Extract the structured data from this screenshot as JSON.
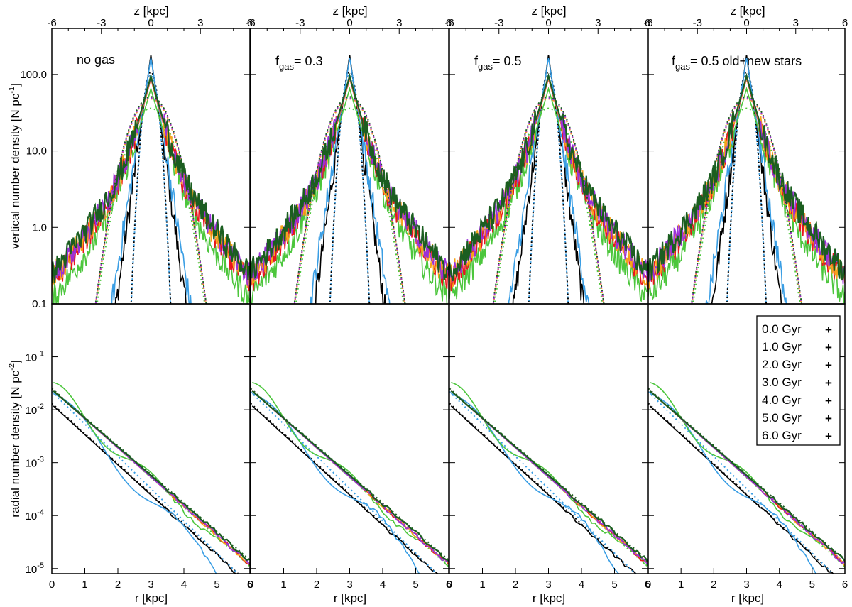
{
  "chart_data": {
    "type": "line",
    "top_axis": {
      "label": "z [kpc]",
      "range": [
        -6,
        6
      ],
      "tick_values": [
        -6,
        -3,
        0,
        3,
        6
      ],
      "tick_labels": [
        "-6",
        "-3",
        "0",
        "3",
        "6"
      ]
    },
    "bottom_axis": {
      "label": "r [kpc]",
      "range": [
        0,
        6
      ],
      "tick_values": [
        0,
        1,
        2,
        3,
        4,
        5,
        6
      ],
      "tick_labels": [
        "0",
        "1",
        "2",
        "3",
        "4",
        "5",
        "6"
      ]
    },
    "vertical_ylabel": "vertical number density [N pc",
    "vertical_ylabel_sup": "-1",
    "vertical_ylabel_end": "]",
    "vertical_yrange": [
      0.1,
      400
    ],
    "vertical_ytick_values": [
      0.1,
      1,
      10,
      100
    ],
    "vertical_ytick_labels": [
      "0.1",
      "1.0",
      "10.0",
      "100.0"
    ],
    "radial_ylabel": "radial number density [N pc",
    "radial_ylabel_sup": "-2",
    "radial_ylabel_end": "]",
    "radial_yrange": [
      8e-06,
      1
    ],
    "radial_ytick_values": [
      1e-05,
      0.0001,
      0.001,
      0.01,
      0.1
    ],
    "radial_ytick_base": [
      "10",
      "10",
      "10",
      "10",
      "10"
    ],
    "radial_ytick_exp": [
      "-5",
      "-4",
      "-3",
      "-2",
      "-1"
    ],
    "panels": [
      {
        "label": "no gas",
        "sub": "",
        "after": ""
      },
      {
        "label": "f",
        "sub": "gas",
        "after": "= 0.3"
      },
      {
        "label": "f",
        "sub": "gas",
        "after": "= 0.5"
      },
      {
        "label": "f",
        "sub": "gas",
        "after": "= 0.5 old+new stars"
      }
    ],
    "series": [
      {
        "name": "0.0 Gyr",
        "marker": "+",
        "color": "#000000",
        "v_peak": 180,
        "v_h": 0.28,
        "v_floor": 0.0,
        "r_logc": -1.9,
        "r_slope": -0.57
      },
      {
        "name": "1.0 Gyr",
        "marker": "+",
        "color": "#3a9ee4",
        "v_peak": 165,
        "v_h": 0.32,
        "v_floor": 0.0,
        "r_logc": -1.68,
        "r_slope": -0.61
      },
      {
        "name": "2.0 Gyr",
        "marker": "+",
        "color": "#4cc63c",
        "v_peak": 60,
        "v_h": 0.55,
        "v_floor": 0.6,
        "r_logc": -1.62,
        "r_slope": -0.56
      },
      {
        "name": "3.0 Gyr",
        "marker": "+",
        "color": "#e8151d",
        "v_peak": 80,
        "v_h": 0.5,
        "v_floor": 1.0,
        "r_logc": -1.62,
        "r_slope": -0.55
      },
      {
        "name": "4.0 Gyr",
        "marker": "+",
        "color": "#f7a21c",
        "v_peak": 80,
        "v_h": 0.5,
        "v_floor": 1.1,
        "r_logc": -1.62,
        "r_slope": -0.55
      },
      {
        "name": "5.0 Gyr",
        "marker": "+",
        "color": "#9b30d9",
        "v_peak": 82,
        "v_h": 0.5,
        "v_floor": 1.2,
        "r_logc": -1.62,
        "r_slope": -0.55
      },
      {
        "name": "6.0 Gyr",
        "marker": "+",
        "color": "#1b5e20",
        "v_peak": 85,
        "v_h": 0.5,
        "v_floor": 1.3,
        "r_logc": -1.62,
        "r_slope": -0.54
      }
    ]
  }
}
